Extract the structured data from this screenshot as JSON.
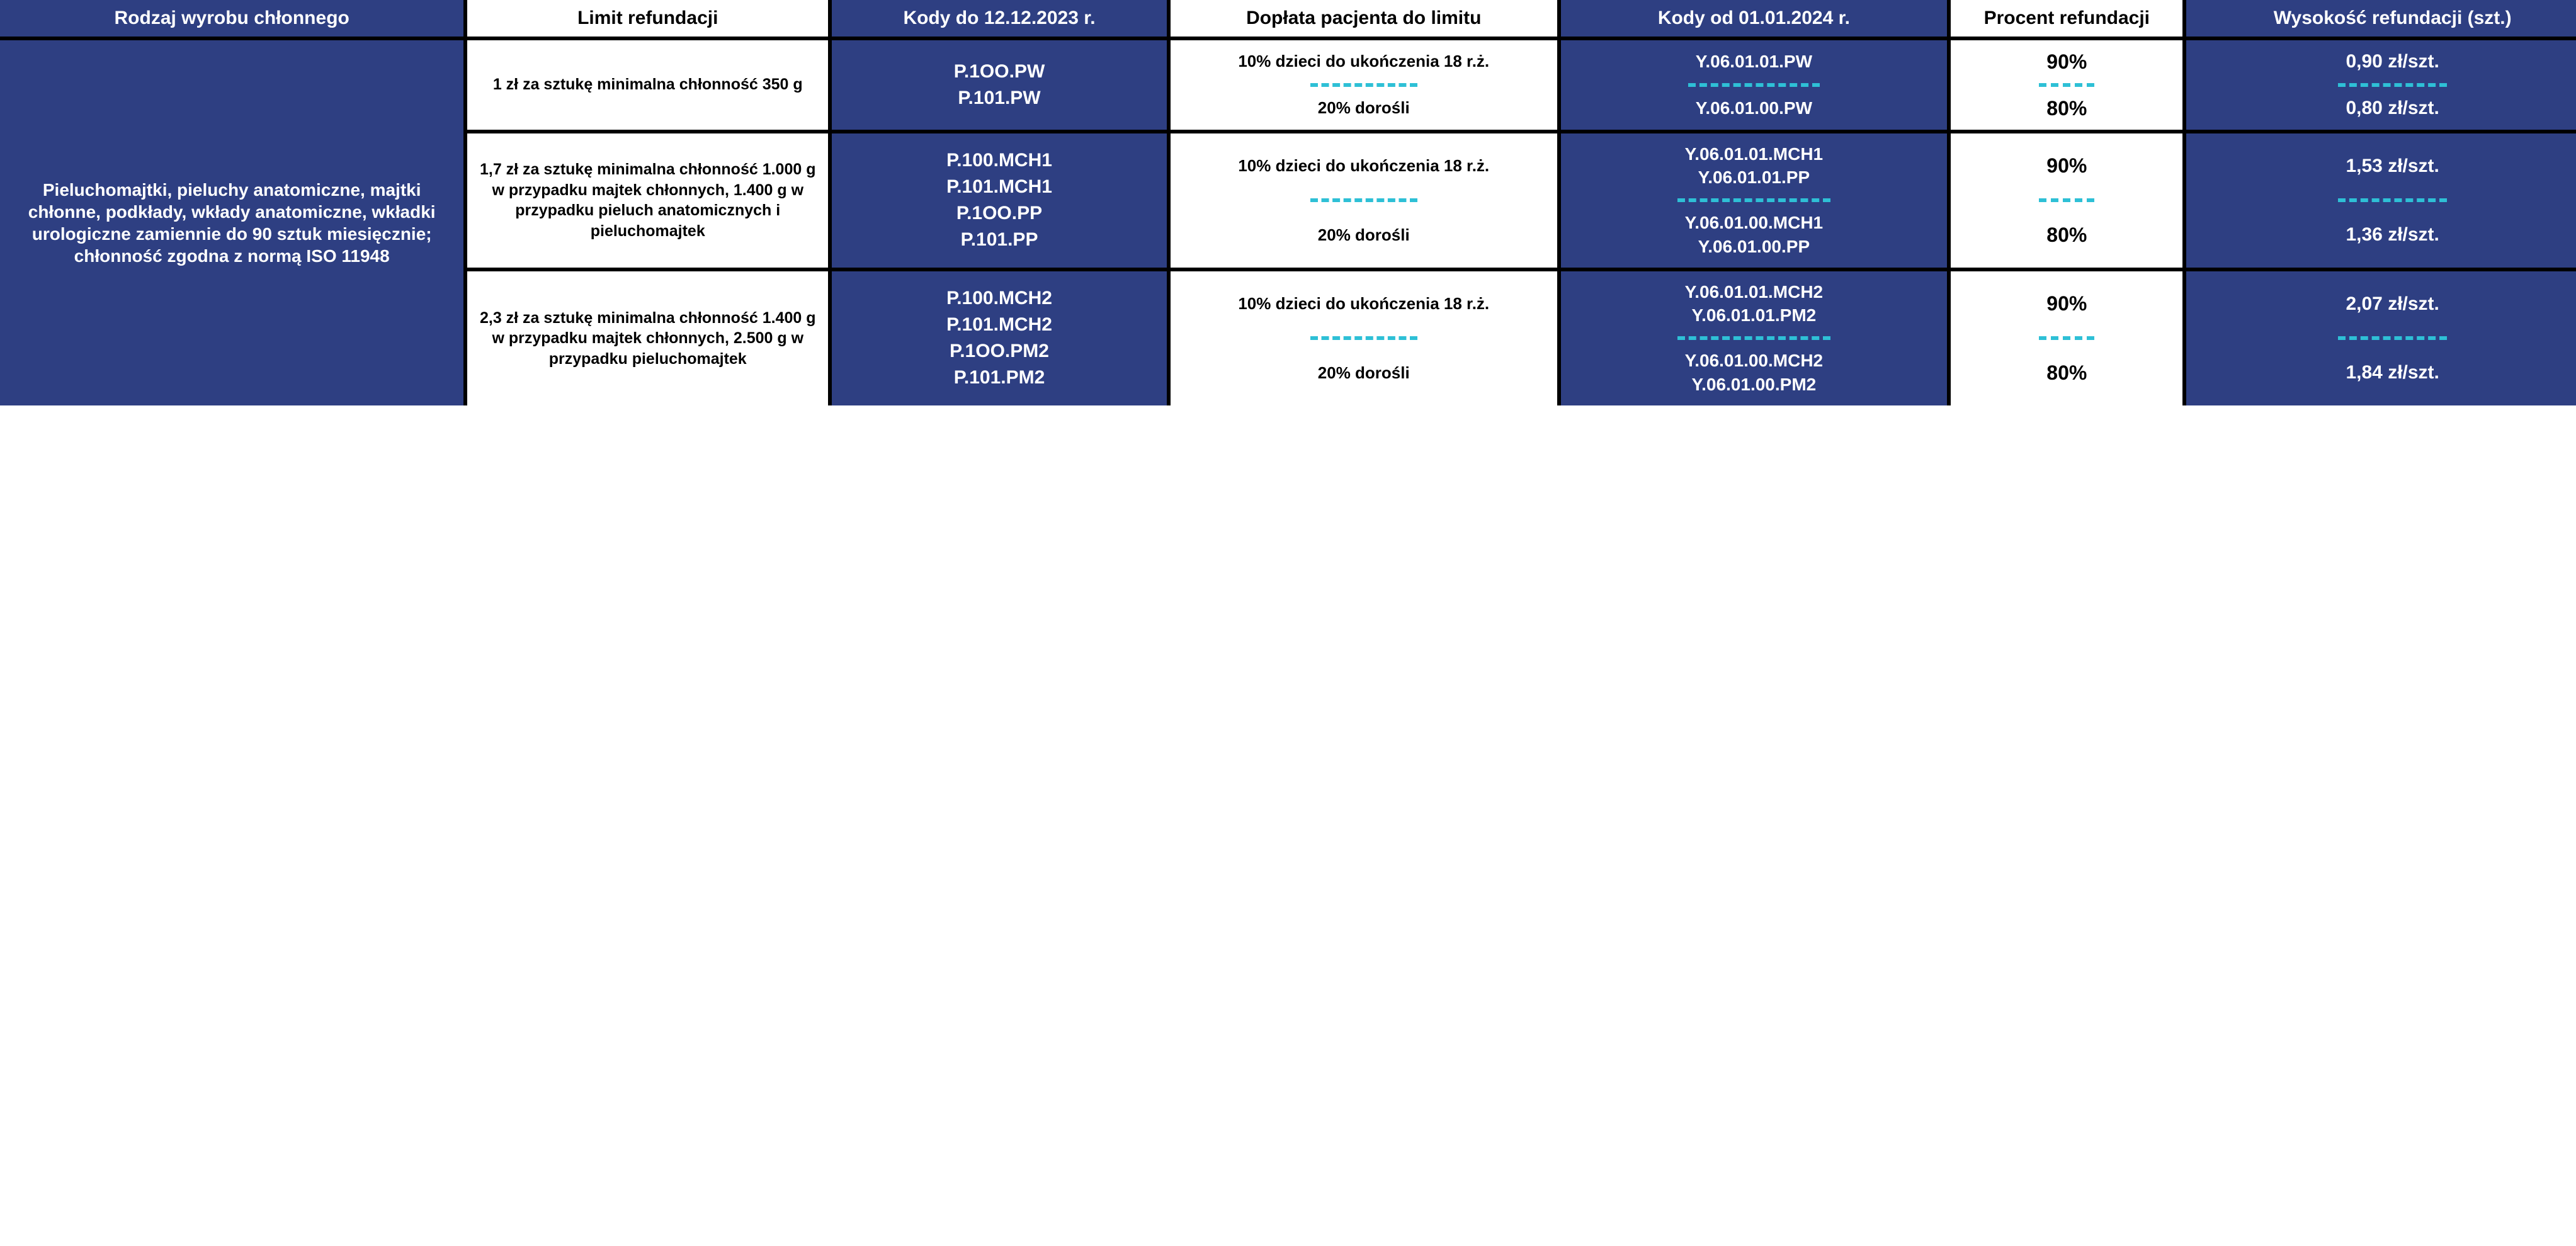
{
  "colors": {
    "blue": "#2e3f82",
    "dash": "#2ec0d6",
    "black": "#000000",
    "white": "#ffffff"
  },
  "headers": {
    "c1": "Rodzaj wyrobu chłonnego",
    "c2": "Limit refundacji",
    "c3": "Kody do 12.12.2023 r.",
    "c4": "Dopłata pacjenta do limitu",
    "c5": "Kody od 01.01.2024 r.",
    "c6": "Procent refundacji",
    "c7": "Wysokość refundacji (szt.)"
  },
  "product_desc": "Pieluchomajtki, pieluchy anatomiczne, majtki chłonne, podkłady, wkłady anatomiczne, wkładki urologiczne zamiennie do 90 sztuk miesięcznie; chłonność zgodna z normą ISO 11948",
  "groups": [
    {
      "limit": "1 zł za sztukę minimalna chłonność 350 g",
      "codes_old": "P.1OO.PW\nP.101.PW",
      "top": {
        "copay": "10% dzieci do ukończenia 18 r.ż.",
        "codes_new": "Y.06.01.01.PW",
        "pct": "90%",
        "amt": "0,90 zł/szt."
      },
      "bot": {
        "copay": "20% dorośli",
        "codes_new": "Y.06.01.00.PW",
        "pct": "80%",
        "amt": "0,80 zł/szt."
      }
    },
    {
      "limit": "1,7 zł za sztukę minimalna chłonność 1.000 g w przypadku majtek chłonnych, 1.400 g w przypadku pieluch anatomicznych i pieluchomajtek",
      "codes_old": "P.100.MCH1\nP.101.MCH1\nP.1OO.PP\nP.101.PP",
      "top": {
        "copay": "10% dzieci do ukończenia 18 r.ż.",
        "codes_new": "Y.06.01.01.MCH1\nY.06.01.01.PP",
        "pct": "90%",
        "amt": "1,53 zł/szt."
      },
      "bot": {
        "copay": "20% dorośli",
        "codes_new": "Y.06.01.00.MCH1\nY.06.01.00.PP",
        "pct": "80%",
        "amt": "1,36 zł/szt."
      }
    },
    {
      "limit": "2,3 zł za sztukę minimalna chłonność 1.400 g w przypadku majtek chłonnych, 2.500 g w przypadku pieluchomajtek",
      "codes_old": "P.100.MCH2\nP.101.MCH2\nP.1OO.PM2\nP.101.PM2",
      "top": {
        "copay": "10% dzieci do ukończenia 18 r.ż.",
        "codes_new": "Y.06.01.01.MCH2\nY.06.01.01.PM2",
        "pct": "90%",
        "amt": "2,07 zł/szt."
      },
      "bot": {
        "copay": "20% dorośli",
        "codes_new": "Y.06.01.00.MCH2\nY.06.01.00.PM2",
        "pct": "80%",
        "amt": "1,84 zł/szt."
      }
    }
  ]
}
